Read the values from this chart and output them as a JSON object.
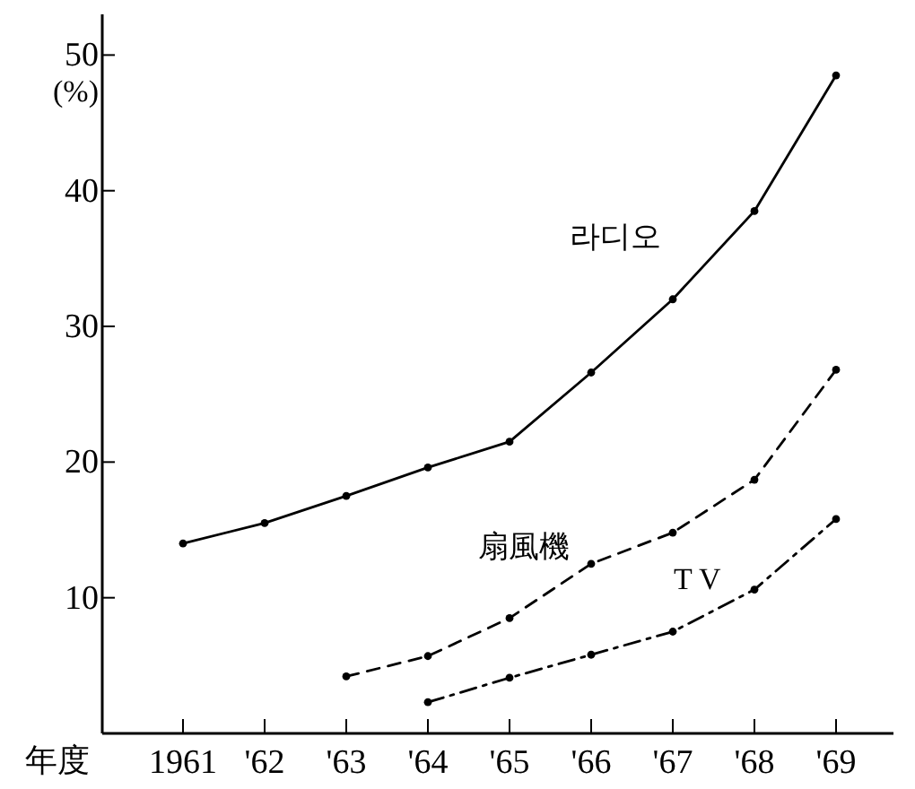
{
  "chart_data": {
    "type": "line",
    "xlabel": "年度",
    "ylabel": "(%)",
    "categories": [
      "1961",
      "'62",
      "'63",
      "'64",
      "'65",
      "'66",
      "'67",
      "'68",
      "'69"
    ],
    "ylim": [
      0,
      53
    ],
    "yticks": [
      10,
      20,
      30,
      40,
      50
    ],
    "grid": false,
    "marker": "circle",
    "series": [
      {
        "name": "라디오",
        "color": "#000000",
        "line_style": "solid",
        "values": [
          14,
          15.5,
          17.5,
          19.6,
          21.5,
          26.6,
          32,
          38.5,
          48.5
        ]
      },
      {
        "name": "扇風機",
        "color": "#000000",
        "line_style": "dashed",
        "values": [
          null,
          null,
          4.2,
          5.7,
          8.5,
          12.5,
          14.8,
          18.7,
          26.8
        ]
      },
      {
        "name": "T V",
        "color": "#000000",
        "line_style": "dashdot",
        "values": [
          null,
          null,
          null,
          2.3,
          4.1,
          5.8,
          7.5,
          10.6,
          15.8
        ]
      }
    ]
  }
}
